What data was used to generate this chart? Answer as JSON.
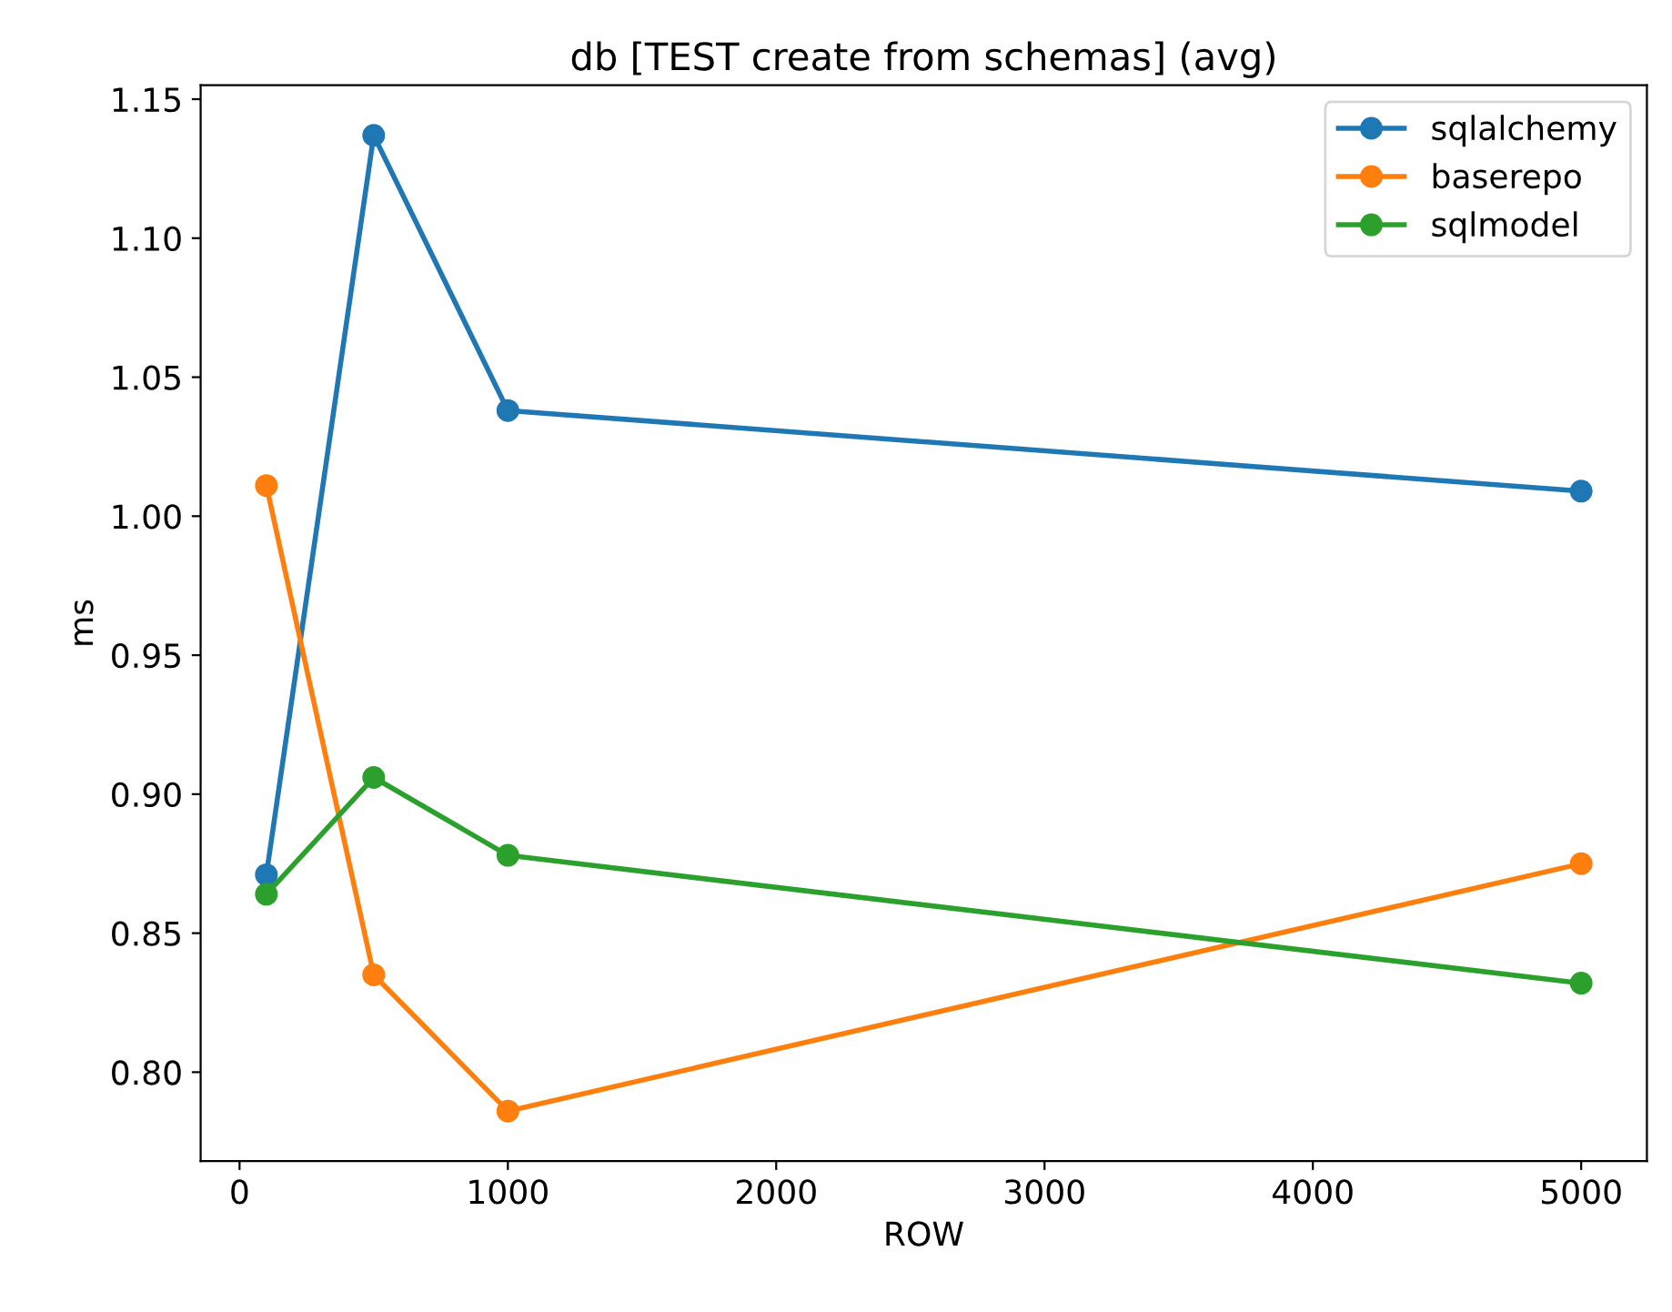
{
  "chart_data": {
    "type": "line",
    "title": "db [TEST create from schemas] (avg)",
    "xlabel": "ROW",
    "ylabel": "ms",
    "x": [
      100,
      500,
      1000,
      5000
    ],
    "series": [
      {
        "name": "sqlalchemy",
        "color": "#1f77b4",
        "values": [
          0.871,
          1.137,
          1.038,
          1.009
        ]
      },
      {
        "name": "baserepo",
        "color": "#ff7f0e",
        "values": [
          1.011,
          0.835,
          0.786,
          0.875
        ]
      },
      {
        "name": "sqlmodel",
        "color": "#2ca02c",
        "values": [
          0.864,
          0.906,
          0.878,
          0.832
        ]
      }
    ],
    "xlim": [
      -145,
      5245
    ],
    "xticks": [
      0,
      1000,
      2000,
      3000,
      4000,
      5000
    ],
    "ylim": [
      0.768,
      1.155
    ],
    "yticks": [
      {
        "value": 0.8,
        "label": "0.80"
      },
      {
        "value": 0.85,
        "label": "0.85"
      },
      {
        "value": 0.9,
        "label": "0.90"
      },
      {
        "value": 0.95,
        "label": "0.95"
      },
      {
        "value": 1.0,
        "label": "1.00"
      },
      {
        "value": 1.05,
        "label": "1.05"
      },
      {
        "value": 1.1,
        "label": "1.10"
      },
      {
        "value": 1.15,
        "label": "1.15"
      }
    ],
    "marker": "circle",
    "line_style": "solid",
    "legend": "top right",
    "grid": false
  }
}
